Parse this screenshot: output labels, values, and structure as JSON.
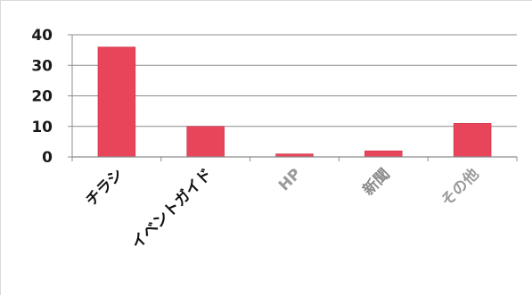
{
  "chart_data": {
    "type": "bar",
    "categories": [
      "チラシ",
      "イベントガイド",
      "HP",
      "新聞",
      "その他"
    ],
    "values": [
      36,
      10,
      1,
      2,
      11
    ],
    "ylim": [
      0,
      40
    ],
    "yticks": [
      0,
      10,
      20,
      30,
      40
    ],
    "grid": true,
    "bar_color": "#e8445a",
    "category_label_colors": [
      "#111111",
      "#111111",
      "#9a9a9a",
      "#8a8a8a",
      "#9a9a9a"
    ]
  }
}
